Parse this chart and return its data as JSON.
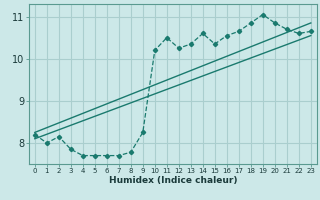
{
  "xlabel": "Humidex (Indice chaleur)",
  "bg_color": "#cce8e8",
  "grid_color": "#aacece",
  "line_color": "#1a7a6e",
  "xlim": [
    -0.5,
    23.5
  ],
  "ylim": [
    7.5,
    11.3
  ],
  "xticks": [
    0,
    1,
    2,
    3,
    4,
    5,
    6,
    7,
    8,
    9,
    10,
    11,
    12,
    13,
    14,
    15,
    16,
    17,
    18,
    19,
    20,
    21,
    22,
    23
  ],
  "yticks": [
    8,
    9,
    10,
    11
  ],
  "series1_x": [
    0,
    1,
    2,
    3,
    4,
    5,
    6,
    7,
    8,
    9,
    10,
    11,
    12,
    13,
    14,
    15,
    16,
    17,
    18,
    19,
    20,
    21,
    22,
    23
  ],
  "series1_y": [
    8.2,
    8.0,
    8.15,
    7.85,
    7.7,
    7.7,
    7.7,
    7.7,
    7.78,
    8.25,
    10.2,
    10.5,
    10.25,
    10.35,
    10.6,
    10.35,
    10.55,
    10.65,
    10.85,
    11.05,
    10.85,
    10.7,
    10.6,
    10.65
  ],
  "series2_x": [
    0,
    23
  ],
  "series2_y": [
    8.25,
    10.85
  ],
  "series3_x": [
    0,
    23
  ],
  "series3_y": [
    8.1,
    10.55
  ]
}
